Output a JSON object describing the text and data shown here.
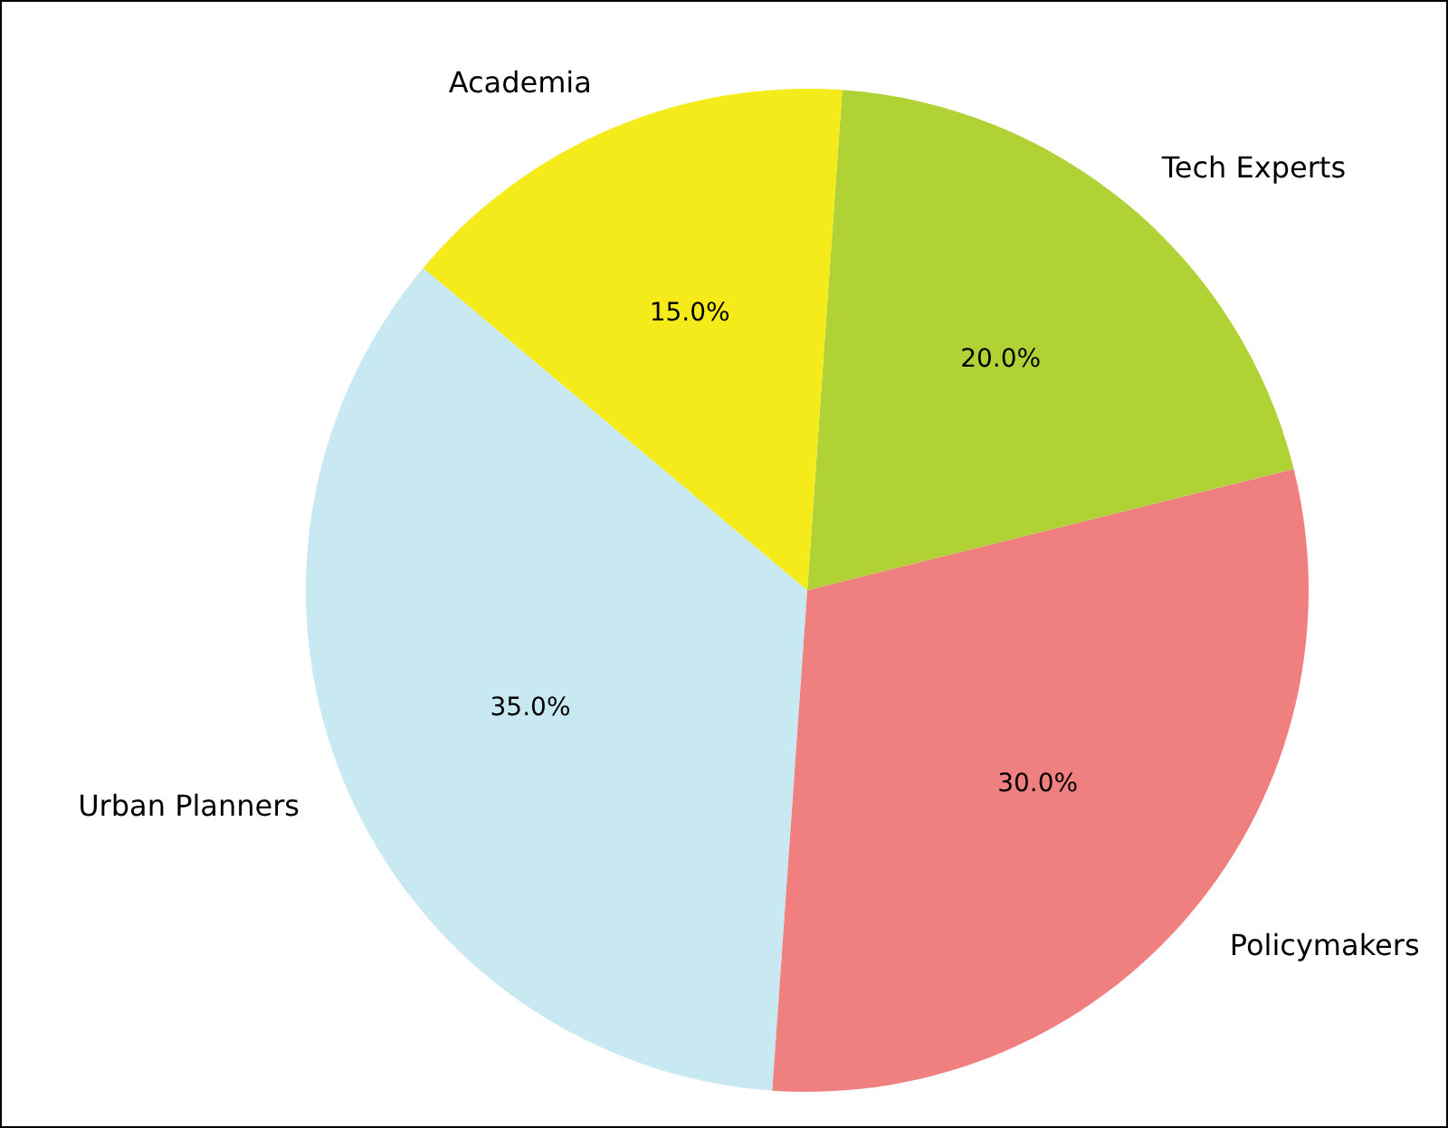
{
  "chart_data": {
    "type": "pie",
    "categories": [
      "Urban Planners",
      "Policymakers",
      "Tech Experts",
      "Academia"
    ],
    "values": [
      35,
      30,
      20,
      15
    ],
    "value_labels": [
      "35.0%",
      "30.0%",
      "20.0%",
      "15.0%"
    ],
    "colors": [
      "#c9e9f2",
      "#f07f7f",
      "#b0d235",
      "#f5ea1a"
    ],
    "legend": false
  }
}
